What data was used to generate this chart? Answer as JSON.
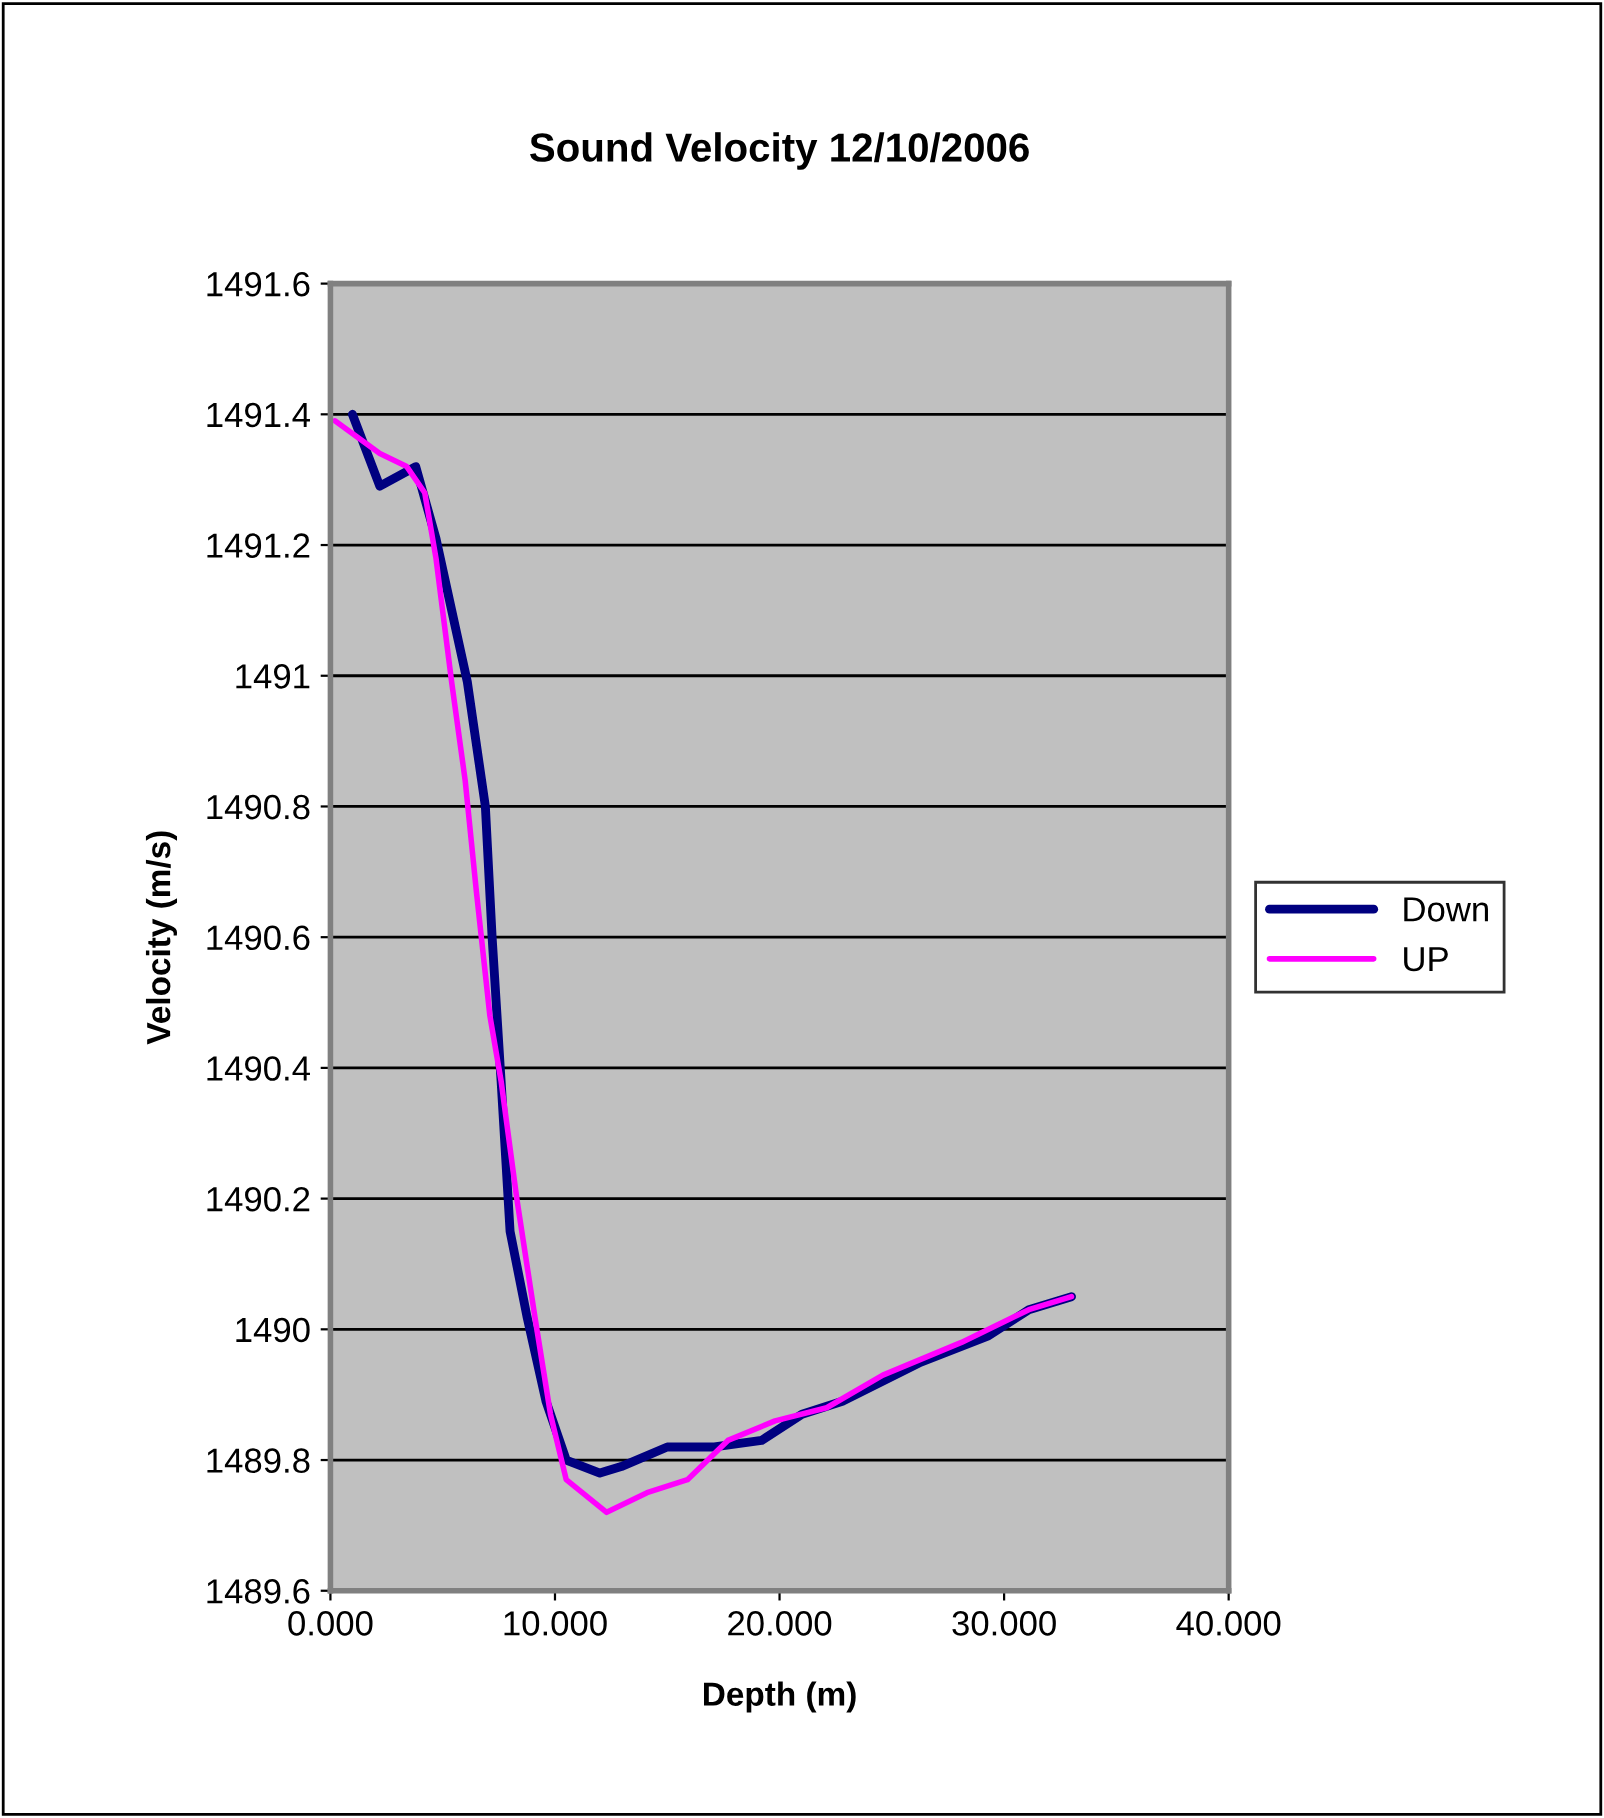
{
  "chart_data": {
    "type": "line",
    "title": "Sound Velocity 12/10/2006",
    "xlabel": "Depth (m)",
    "ylabel": "Velocity (m/s)",
    "xlim": [
      0,
      40
    ],
    "ylim": [
      1489.6,
      1491.6
    ],
    "xticks": [
      {
        "value": 0,
        "label": "0.000"
      },
      {
        "value": 10,
        "label": "10.000"
      },
      {
        "value": 20,
        "label": "20.000"
      },
      {
        "value": 30,
        "label": "30.000"
      },
      {
        "value": 40,
        "label": "40.000"
      }
    ],
    "yticks": [
      1489.6,
      1489.8,
      1490,
      1490.2,
      1490.4,
      1490.6,
      1490.8,
      1491,
      1491.2,
      1491.4,
      1491.6
    ],
    "grid": "y",
    "legend": "right",
    "marker": "none",
    "line_style": "solid",
    "series": [
      {
        "name": "Down",
        "color": "#000080",
        "x": [
          0.98,
          2.2,
          3.8,
          4.7,
          6.1,
          6.9,
          7.2,
          7.6,
          8.0,
          8.75,
          9.6,
          10.5,
          12.0,
          12.95,
          15.0,
          17.1,
          19.2,
          21.0,
          22.8,
          26.3,
          29.3,
          31.1,
          33.0
        ],
        "values": [
          1491.4,
          1491.29,
          1491.32,
          1491.21,
          1490.99,
          1490.8,
          1490.6,
          1490.38,
          1490.15,
          1490.02,
          1489.89,
          1489.8,
          1489.78,
          1489.79,
          1489.82,
          1489.82,
          1489.83,
          1489.87,
          1489.89,
          1489.95,
          1489.99,
          1490.03,
          1490.05
        ]
      },
      {
        "name": "UP",
        "color": "#ff00ff",
        "x": [
          0.2,
          2.2,
          3.4,
          4.2,
          4.7,
          5.4,
          6.0,
          6.5,
          7.1,
          7.6,
          8.3,
          9.1,
          9.8,
          10.5,
          12.3,
          14.1,
          15.9,
          17.7,
          19.8,
          22.1,
          24.6,
          28.1,
          31.1,
          33.0
        ],
        "values": [
          1491.39,
          1491.34,
          1491.32,
          1491.28,
          1491.18,
          1490.99,
          1490.84,
          1490.67,
          1490.48,
          1490.38,
          1490.2,
          1490.02,
          1489.87,
          1489.77,
          1489.72,
          1489.75,
          1489.77,
          1489.83,
          1489.86,
          1489.88,
          1489.93,
          1489.98,
          1490.03,
          1490.05
        ]
      }
    ]
  }
}
